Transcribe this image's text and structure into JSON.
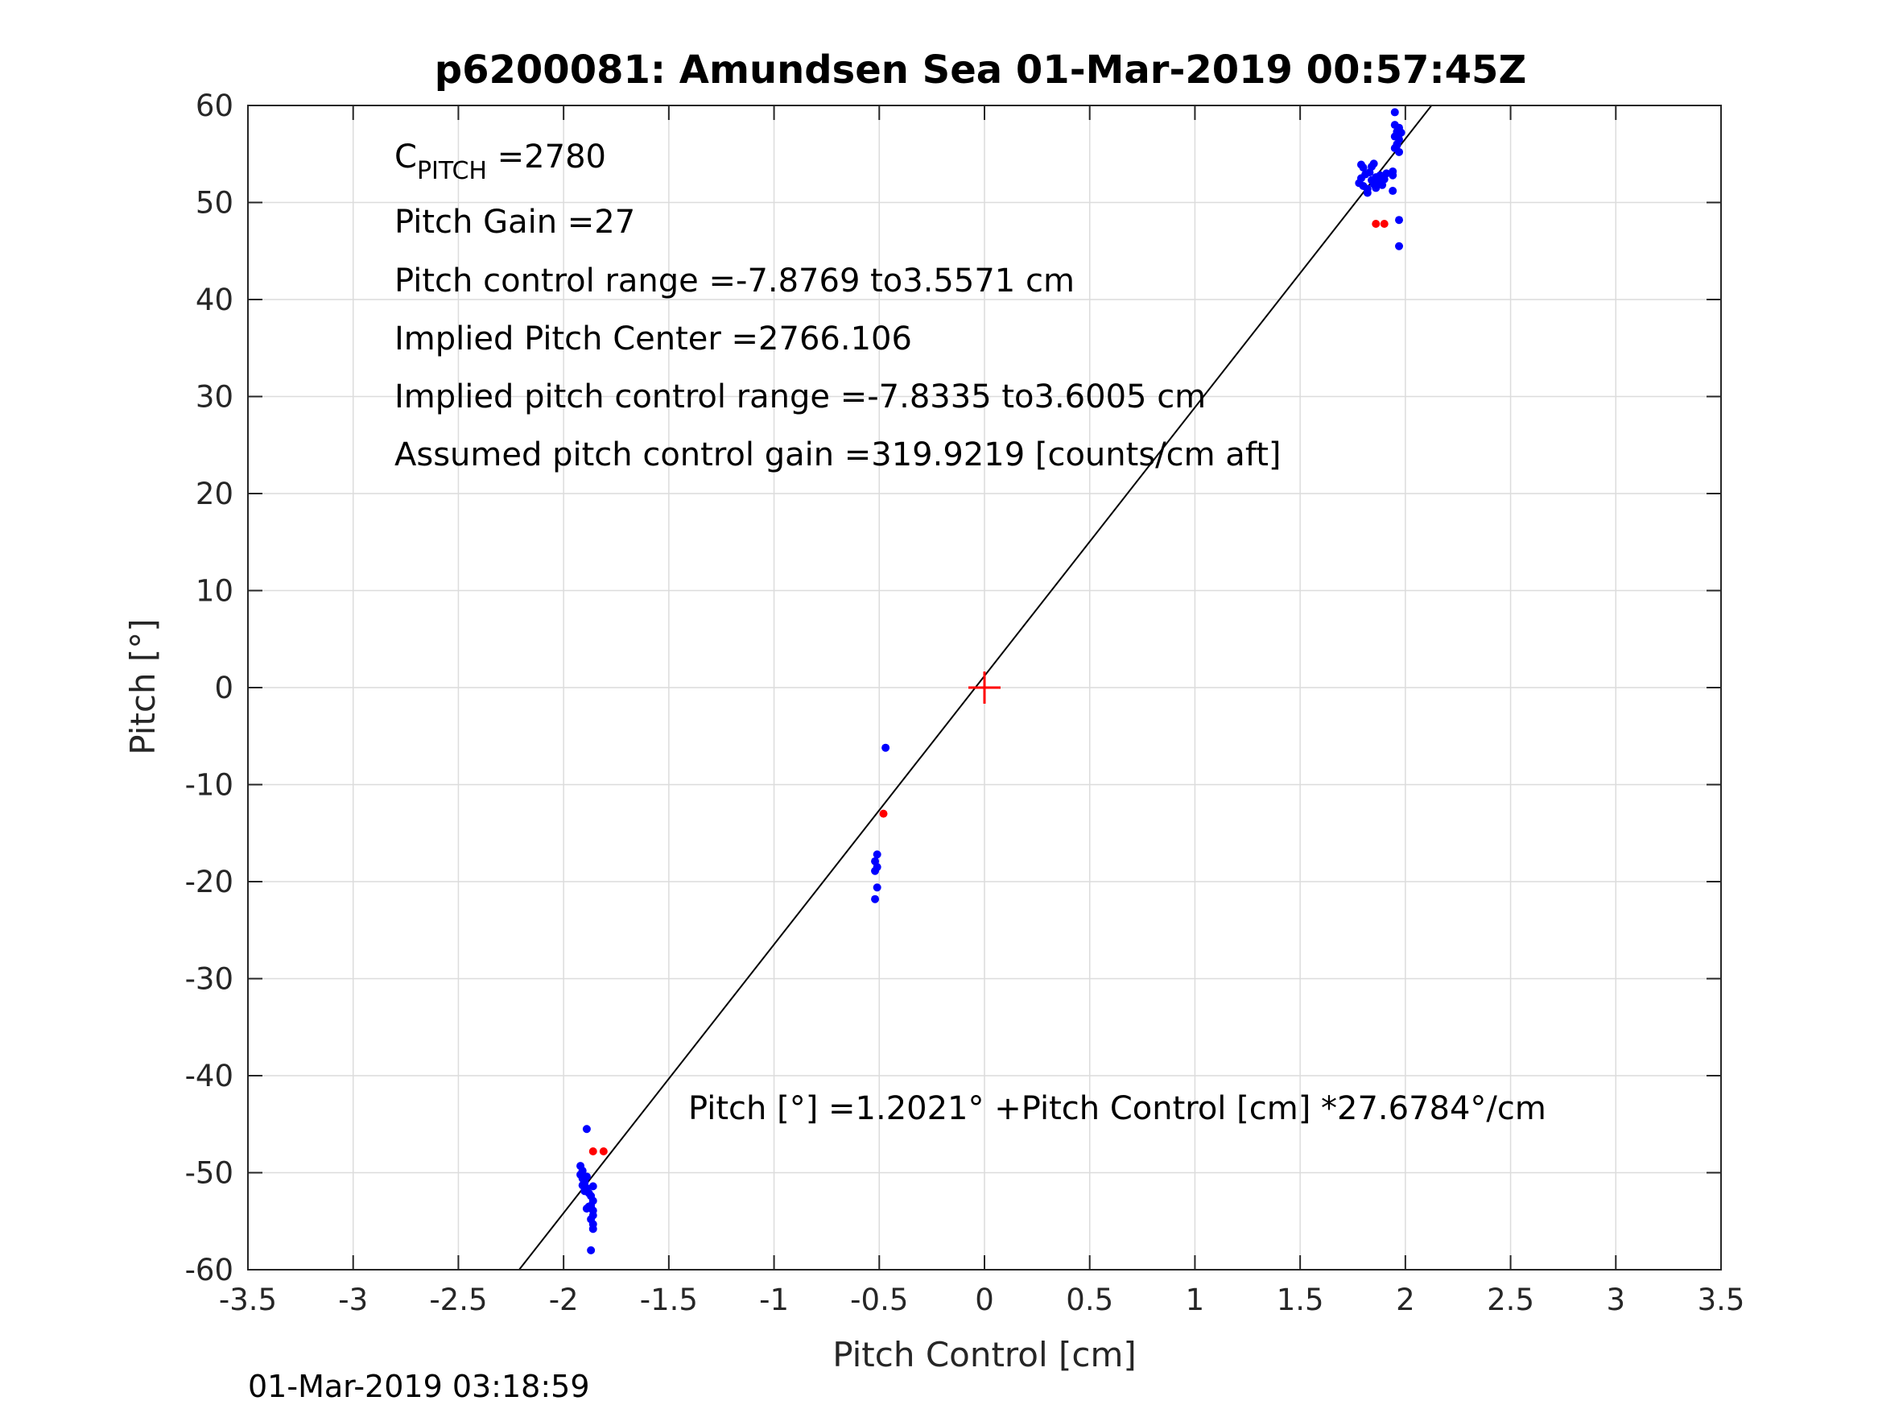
{
  "chart_data": {
    "type": "scatter",
    "title": "p6200081: Amundsen Sea 01-Mar-2019 00:57:45Z",
    "xlabel": "Pitch Control [cm]",
    "ylabel": "Pitch [°]",
    "xlim": [
      -3.5,
      3.5
    ],
    "ylim": [
      -60,
      60
    ],
    "xticks": [
      -3.5,
      -3,
      -2.5,
      -2,
      -1.5,
      -1,
      -0.5,
      0,
      0.5,
      1,
      1.5,
      2,
      2.5,
      3,
      3.5
    ],
    "xtick_labels": [
      "-3.5",
      "-3",
      "-2.5",
      "-2",
      "-1.5",
      "-1",
      "-0.5",
      "0",
      "0.5",
      "1",
      "1.5",
      "2",
      "2.5",
      "3",
      "3.5"
    ],
    "yticks": [
      -60,
      -50,
      -40,
      -30,
      -20,
      -10,
      0,
      10,
      20,
      30,
      40,
      50,
      60
    ],
    "ytick_labels": [
      "-60",
      "-50",
      "-40",
      "-30",
      "-20",
      "-10",
      "0",
      "10",
      "20",
      "30",
      "40",
      "50",
      "60"
    ],
    "grid": true,
    "fit_line": {
      "intercept": 1.2021,
      "slope": 27.6784,
      "color": "#000000"
    },
    "center_marker": {
      "x": 0,
      "y": 0,
      "color": "#ff0000",
      "shape": "plus"
    },
    "series": [
      {
        "color": "#0000ff",
        "points": [
          [
            -1.89,
            -45.5
          ],
          [
            -1.92,
            -49.3
          ],
          [
            -1.91,
            -49.8
          ],
          [
            -1.92,
            -50.2
          ],
          [
            -1.91,
            -50.6
          ],
          [
            -1.9,
            -51.0
          ],
          [
            -1.91,
            -51.3
          ],
          [
            -1.89,
            -51.6
          ],
          [
            -1.9,
            -51.9
          ],
          [
            -1.88,
            -52.1
          ],
          [
            -1.86,
            -51.4
          ],
          [
            -1.87,
            -52.4
          ],
          [
            -1.86,
            -52.9
          ],
          [
            -1.87,
            -53.4
          ],
          [
            -1.86,
            -53.9
          ],
          [
            -1.89,
            -53.7
          ],
          [
            -1.88,
            -53.5
          ],
          [
            -1.86,
            -54.4
          ],
          [
            -1.87,
            -54.8
          ],
          [
            -1.86,
            -55.3
          ],
          [
            -1.86,
            -55.8
          ],
          [
            -1.87,
            -58.0
          ],
          [
            -1.9,
            -50.9
          ],
          [
            -1.89,
            -50.4
          ],
          [
            -0.51,
            -17.2
          ],
          [
            -0.52,
            -17.9
          ],
          [
            -0.51,
            -18.5
          ],
          [
            -0.52,
            -18.9
          ],
          [
            -0.51,
            -20.6
          ],
          [
            -0.52,
            -21.8
          ],
          [
            -0.47,
            -6.2
          ],
          [
            1.78,
            52.0
          ],
          [
            1.79,
            52.5
          ],
          [
            1.8,
            51.7
          ],
          [
            1.81,
            52.9
          ],
          [
            1.82,
            51.4
          ],
          [
            1.83,
            53.1
          ],
          [
            1.84,
            52.3
          ],
          [
            1.85,
            51.9
          ],
          [
            1.86,
            52.6
          ],
          [
            1.87,
            52.0
          ],
          [
            1.88,
            52.8
          ],
          [
            1.89,
            51.8
          ],
          [
            1.9,
            52.4
          ],
          [
            1.91,
            53.0
          ],
          [
            1.8,
            53.6
          ],
          [
            1.82,
            51.0
          ],
          [
            1.84,
            53.7
          ],
          [
            1.86,
            51.5
          ],
          [
            1.88,
            52.2
          ],
          [
            1.79,
            53.9
          ],
          [
            1.85,
            54.0
          ],
          [
            1.94,
            52.8
          ],
          [
            1.94,
            51.2
          ],
          [
            1.94,
            53.2
          ],
          [
            1.95,
            59.3
          ],
          [
            1.95,
            58.0
          ],
          [
            1.96,
            57.3
          ],
          [
            1.95,
            56.8
          ],
          [
            1.97,
            56.5
          ],
          [
            1.96,
            56.0
          ],
          [
            1.95,
            55.6
          ],
          [
            1.97,
            55.2
          ],
          [
            1.98,
            57.2
          ],
          [
            1.97,
            57.7
          ],
          [
            1.96,
            55.9
          ],
          [
            1.97,
            48.2
          ],
          [
            1.97,
            45.5
          ]
        ]
      },
      {
        "color": "#ff0000",
        "points": [
          [
            -1.86,
            -47.8
          ],
          [
            -1.81,
            -47.8
          ],
          [
            -0.48,
            -13.0
          ],
          [
            1.86,
            47.8
          ],
          [
            1.9,
            47.8
          ]
        ]
      }
    ],
    "annotations": {
      "c_pitch_main": "C",
      "c_pitch_sub": "PITCH",
      "c_pitch_value": " =2780",
      "lines": [
        "Pitch Gain =27",
        "Pitch control range =-7.8769 to3.5571 cm",
        "Implied Pitch Center =2766.106",
        "Implied pitch control range =-7.8335 to3.6005 cm",
        "Assumed pitch control gain =319.9219 [counts/cm aft]"
      ],
      "fit_equation": "Pitch [°] =1.2021° +Pitch Control [cm] *27.6784°/cm"
    },
    "timestamp": "01-Mar-2019 03:18:59"
  }
}
